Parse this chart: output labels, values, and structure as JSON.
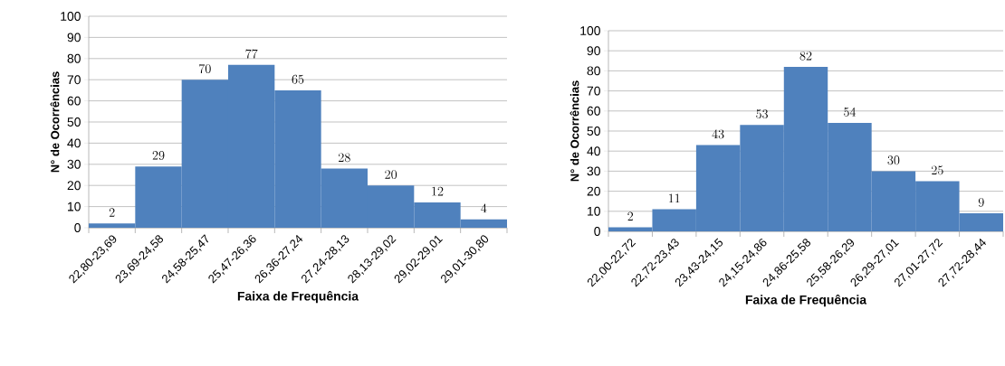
{
  "chart_data": [
    {
      "type": "bar",
      "xlabel": "Faixa de Frequência",
      "ylabel": "N° de Ocorrências",
      "categories": [
        "22,80-23,69",
        "23,69-24,58",
        "24,58-25,47",
        "25,47-26,36",
        "26,36-27,24",
        "27,24-28,13",
        "28,13-29,02",
        "29,02-29,01",
        "29,01-30,80"
      ],
      "values": [
        2,
        29,
        70,
        77,
        65,
        28,
        20,
        12,
        4
      ],
      "color": "#4f81bd",
      "ylim": [
        0,
        100
      ],
      "yticks": [
        0,
        10,
        20,
        30,
        40,
        50,
        60,
        70,
        80,
        90,
        100
      ],
      "grid": "y",
      "data_labels": true
    },
    {
      "type": "bar",
      "xlabel": "Faixa de Frequência",
      "ylabel": "N° de Ocorrências",
      "categories": [
        "22,00-22,72",
        "22,72-23,43",
        "23,43-24,15",
        "24,15-24,86",
        "24,86-25,58",
        "25,58-26,29",
        "26,29-27,01",
        "27,01-27,72",
        "27,72-28,44"
      ],
      "values": [
        2,
        11,
        43,
        53,
        82,
        54,
        30,
        25,
        9
      ],
      "color": "#4f81bd",
      "ylim": [
        0,
        100
      ],
      "yticks": [
        0,
        10,
        20,
        30,
        40,
        50,
        60,
        70,
        80,
        90,
        100
      ],
      "grid": "y",
      "data_labels": true
    }
  ]
}
